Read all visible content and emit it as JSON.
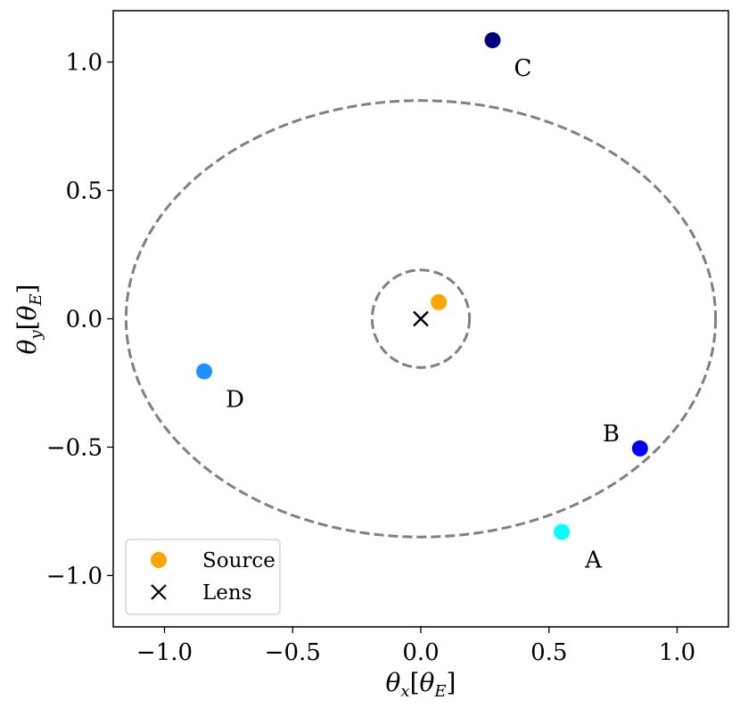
{
  "chart_data": {
    "type": "scatter",
    "xlabel": "θx[θE]",
    "ylabel": "θy[θE]",
    "xlim": [
      -1.2,
      1.2
    ],
    "ylim": [
      -1.2,
      1.2
    ],
    "x_ticks": [
      -1.0,
      -0.5,
      0.0,
      0.5,
      1.0
    ],
    "x_tick_labels": [
      "−1.0",
      "−0.5",
      "0.0",
      "0.5",
      "1.0"
    ],
    "y_ticks": [
      -1.0,
      -0.5,
      0.0,
      0.5,
      1.0
    ],
    "y_tick_labels": [
      "−1.0",
      "−0.5",
      "0.0",
      "0.5",
      "1.0"
    ],
    "grid": false,
    "legend_position": "bottom-left",
    "curves": [
      {
        "kind": "ellipse",
        "center": [
          0,
          0
        ],
        "rx": 1.15,
        "ry": 0.85,
        "style": "dashed",
        "color": "#808080"
      },
      {
        "kind": "ellipse",
        "center": [
          0,
          0
        ],
        "rx": 0.19,
        "ry": 0.19,
        "style": "dashed",
        "color": "#808080"
      }
    ],
    "source": {
      "x": 0.07,
      "y": 0.065,
      "color": "#FFA500"
    },
    "lens": {
      "x": 0.0,
      "y": 0.0,
      "color": "#000000",
      "marker": "x"
    },
    "images": [
      {
        "label": "A",
        "x": 0.55,
        "y": -0.83,
        "color": "#00FFFF"
      },
      {
        "label": "B",
        "x": 0.855,
        "y": -0.505,
        "color": "#0000FF"
      },
      {
        "label": "C",
        "x": 0.28,
        "y": 1.085,
        "color": "#000080"
      },
      {
        "label": "D",
        "x": -0.845,
        "y": -0.205,
        "color": "#1E90FF"
      }
    ],
    "legend": [
      {
        "label": "Source",
        "marker": "circle",
        "color": "#FFA500"
      },
      {
        "label": "Lens",
        "marker": "x",
        "color": "#000000"
      }
    ]
  }
}
